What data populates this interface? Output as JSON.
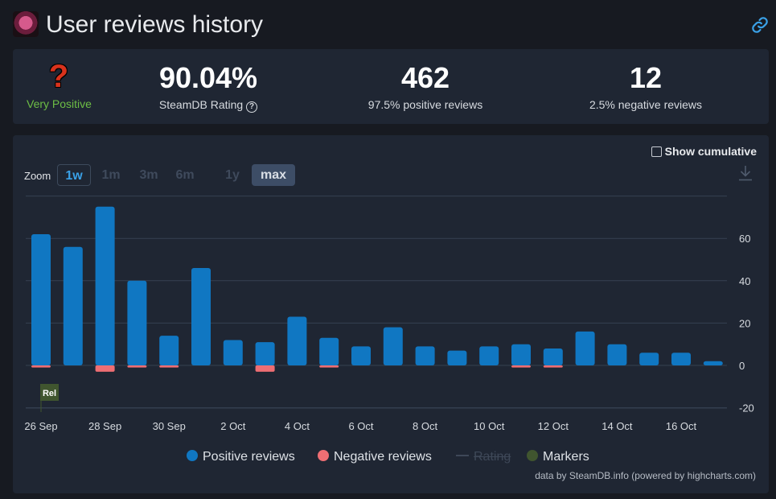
{
  "header": {
    "title": "User reviews history",
    "game_icon": "game-avatar-icon",
    "link_icon": "link-icon"
  },
  "summary": {
    "rating_icon": "question-mark-icon",
    "rating_symbol": "?",
    "rating_word": "Very Positive",
    "steamdb_rating": "90.04%",
    "steamdb_rating_label": "SteamDB Rating",
    "help_symbol": "?",
    "positive_count": "462",
    "positive_label": "97.5% positive reviews",
    "negative_count": "12",
    "negative_label": "2.5% negative reviews"
  },
  "controls": {
    "cumulative_label": "Show cumulative",
    "zoom_label": "Zoom",
    "zoom_options": [
      "1w",
      "1m",
      "3m",
      "6m",
      "1y",
      "max"
    ],
    "download_icon": "download-icon"
  },
  "legend": {
    "positive": "Positive reviews",
    "negative": "Negative reviews",
    "rating": "Rating",
    "markers": "Markers"
  },
  "credits": "data by SteamDB.info (powered by highcharts.com)",
  "colors": {
    "positive": "#1077c2",
    "negative": "#ee6e73",
    "marker": "#40552f",
    "accent": "#3aa1e7",
    "good": "#6dbe45"
  },
  "chart_data": {
    "type": "bar",
    "categories": [
      "26 Sep",
      "27 Sep",
      "28 Sep",
      "29 Sep",
      "30 Sep",
      "1 Oct",
      "2 Oct",
      "3 Oct",
      "4 Oct",
      "5 Oct",
      "6 Oct",
      "7 Oct",
      "8 Oct",
      "9 Oct",
      "10 Oct",
      "11 Oct",
      "12 Oct",
      "13 Oct",
      "14 Oct",
      "15 Oct",
      "16 Oct",
      "17 Oct"
    ],
    "x_tick_labels": [
      "26 Sep",
      "28 Sep",
      "30 Sep",
      "2 Oct",
      "4 Oct",
      "6 Oct",
      "8 Oct",
      "10 Oct",
      "12 Oct",
      "14 Oct",
      "16 Oct"
    ],
    "series": [
      {
        "name": "Positive reviews",
        "values": [
          62,
          56,
          75,
          40,
          14,
          46,
          12,
          11,
          23,
          13,
          9,
          18,
          9,
          7,
          9,
          10,
          8,
          16,
          10,
          6,
          6,
          2
        ]
      },
      {
        "name": "Negative reviews",
        "values": [
          -1,
          0,
          -3,
          -1,
          -1,
          0,
          0,
          -3,
          0,
          -1,
          0,
          0,
          0,
          0,
          0,
          -1,
          -1,
          0,
          0,
          0,
          0,
          0
        ]
      }
    ],
    "y_ticks": [
      60,
      40,
      20,
      0,
      -20
    ],
    "ylim": [
      -20,
      80
    ],
    "markers": [
      {
        "label": "Rel",
        "x": "26 Sep"
      }
    ]
  }
}
